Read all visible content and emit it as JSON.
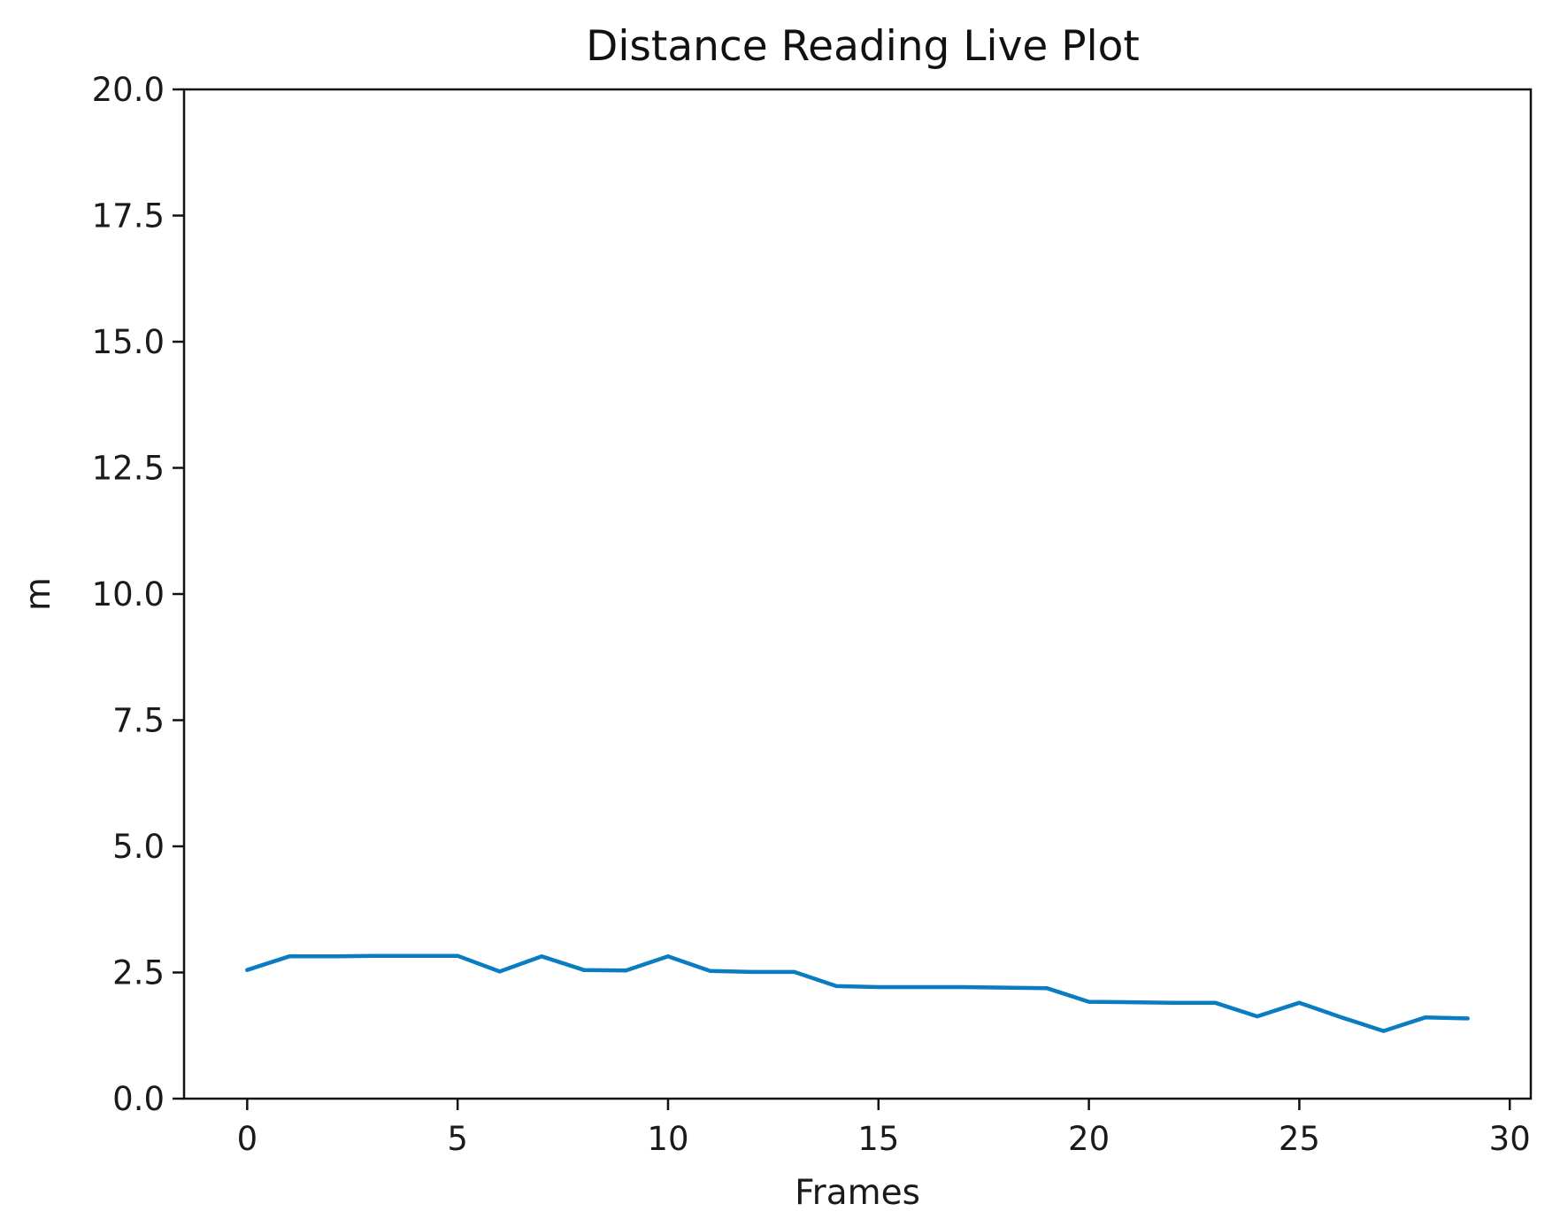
{
  "chart_data": {
    "type": "line",
    "title": "Distance Reading Live Plot",
    "xlabel": "Frames",
    "ylabel": "m",
    "xlim": [
      -1.5,
      30.5
    ],
    "ylim": [
      0.0,
      20.0
    ],
    "xticks": [
      0,
      5,
      10,
      15,
      20,
      25,
      30
    ],
    "xtick_labels": [
      "0",
      "5",
      "10",
      "15",
      "20",
      "25",
      "30"
    ],
    "yticks": [
      0.0,
      2.5,
      5.0,
      7.5,
      10.0,
      12.5,
      15.0,
      17.5,
      20.0
    ],
    "ytick_labels": [
      "0.0",
      "2.5",
      "5.0",
      "7.5",
      "10.0",
      "12.5",
      "15.0",
      "17.5",
      "20.0"
    ],
    "grid": false,
    "legend": "none",
    "series": [
      {
        "color": "#0a7cc1",
        "x": [
          0,
          1,
          2,
          3,
          4,
          5,
          6,
          7,
          8,
          9,
          10,
          11,
          12,
          13,
          14,
          15,
          16,
          17,
          18,
          19,
          20,
          21,
          22,
          23,
          24,
          25,
          26,
          27,
          28,
          29
        ],
        "y": [
          2.55,
          2.82,
          2.82,
          2.83,
          2.83,
          2.83,
          2.52,
          2.82,
          2.55,
          2.54,
          2.82,
          2.53,
          2.51,
          2.51,
          2.23,
          2.21,
          2.21,
          2.21,
          2.2,
          2.19,
          1.92,
          1.91,
          1.9,
          1.9,
          1.63,
          1.9,
          1.61,
          1.34,
          1.61,
          1.59
        ]
      }
    ]
  }
}
